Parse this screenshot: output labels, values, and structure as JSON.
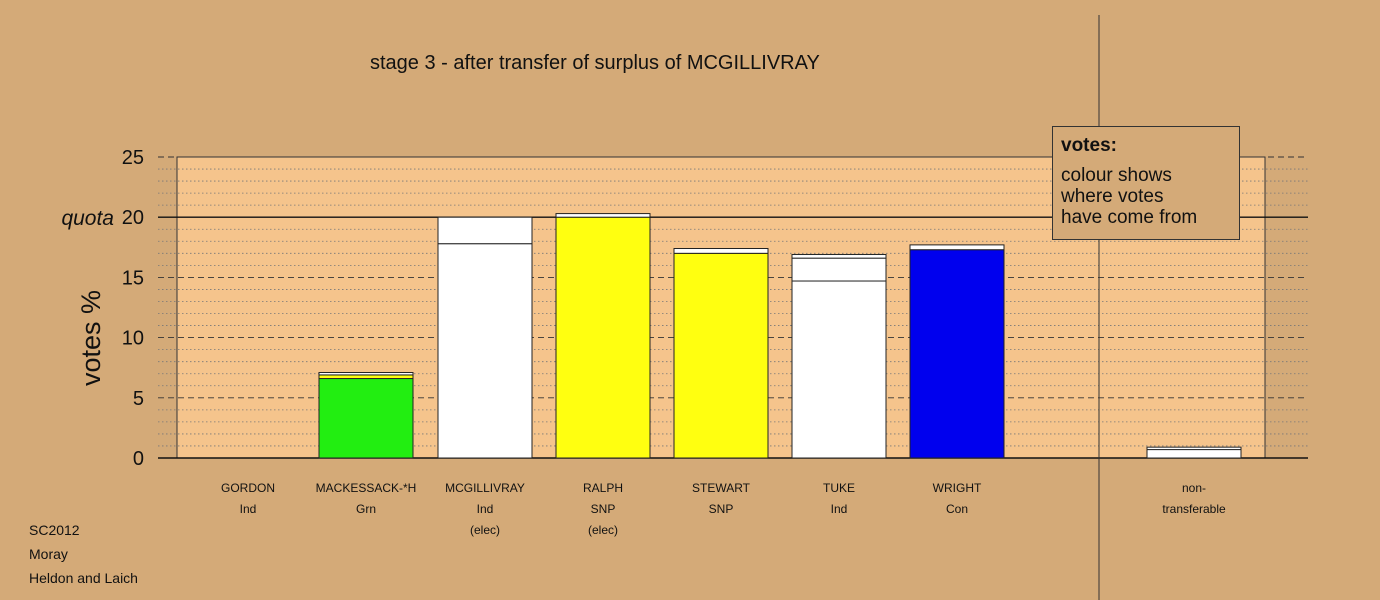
{
  "title": "stage 3 - after transfer of surplus of MCGILLIVRAY",
  "legend": {
    "heading": "votes:",
    "lines": [
      "colour shows",
      "where votes",
      "have come from"
    ]
  },
  "footer": [
    "SC2012",
    "Moray",
    "Heldon and Laich"
  ],
  "colors": {
    "background": "#d4aa78",
    "plot_background": "#f5c48c",
    "ind": "#ffffff",
    "grn": "#22ee11",
    "snp": "#ffff10",
    "con": "#0000ee"
  },
  "chart_data": {
    "type": "bar",
    "stacked": true,
    "title": "stage 3 - after transfer of surplus of MCGILLIVRAY",
    "ylabel": "votes %",
    "ylim": [
      0,
      25
    ],
    "yticks": [
      0,
      5,
      10,
      15,
      20,
      25
    ],
    "quota": 20,
    "quota_label": "quota",
    "grid": true,
    "legend_position": "top-right",
    "categories": [
      {
        "name": "GORDON",
        "party": "Ind",
        "status": "",
        "segments": []
      },
      {
        "name": "MACKESSACK-*H",
        "party": "Grn",
        "status": "",
        "segments": [
          {
            "value": 6.6,
            "color": "#22ee11"
          },
          {
            "value": 0.3,
            "color": "#ffff10"
          },
          {
            "value": 0.2,
            "color": "#ffffff"
          }
        ]
      },
      {
        "name": "MCGILLIVRAY",
        "party": "Ind",
        "status": "(elec)",
        "segments": [
          {
            "value": 17.8,
            "color": "#ffffff"
          },
          {
            "value": 2.2,
            "color": "#ffffff"
          }
        ]
      },
      {
        "name": "RALPH",
        "party": "SNP",
        "status": "(elec)",
        "segments": [
          {
            "value": 20.0,
            "color": "#ffff10"
          },
          {
            "value": 0.3,
            "color": "#ffffff"
          }
        ]
      },
      {
        "name": "STEWART",
        "party": "SNP",
        "status": "",
        "segments": [
          {
            "value": 17.0,
            "color": "#ffff10"
          },
          {
            "value": 0.4,
            "color": "#ffffff"
          }
        ]
      },
      {
        "name": "TUKE",
        "party": "Ind",
        "status": "",
        "segments": [
          {
            "value": 14.7,
            "color": "#ffffff"
          },
          {
            "value": 1.9,
            "color": "#ffffff"
          },
          {
            "value": 0.3,
            "color": "#ffffff"
          }
        ]
      },
      {
        "name": "WRIGHT",
        "party": "Con",
        "status": "",
        "segments": [
          {
            "value": 17.3,
            "color": "#0000ee"
          },
          {
            "value": 0.4,
            "color": "#ffffff"
          }
        ]
      }
    ],
    "nontransferable": {
      "label_lines": [
        "non-",
        "transferable"
      ],
      "segments": [
        {
          "value": 0.7,
          "color": "#ffffff"
        },
        {
          "value": 0.2,
          "color": "#ffffff"
        }
      ]
    }
  }
}
